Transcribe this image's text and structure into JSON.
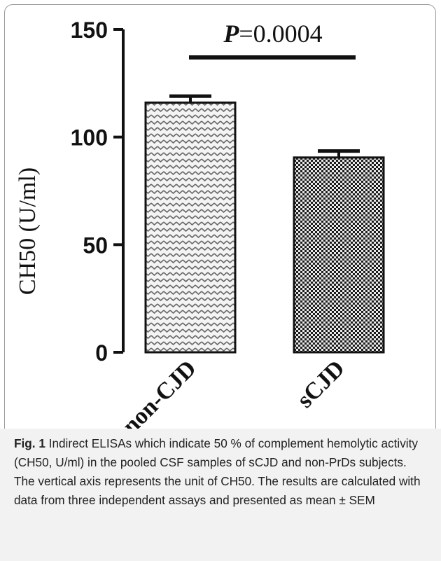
{
  "chart_data": {
    "type": "bar",
    "categories": [
      "non-CJD",
      "sCJD"
    ],
    "values": [
      116,
      90.5
    ],
    "errors": [
      3,
      3
    ],
    "ylabel": "CH50 (U/ml)",
    "ylim": [
      0,
      150
    ],
    "yticks": [
      0,
      50,
      100,
      150
    ],
    "annotation": {
      "p_label": "P",
      "p_value": "=0.0004"
    }
  },
  "caption": {
    "label": "Fig. 1",
    "text": " Indirect ELISAs which indicate 50 % of complement hemolytic activity (CH50, U/ml) in the pooled CSF samples of sCJD and non-PrDs subjects. The vertical axis represents the unit of CH50. The results are calculated with data from three independent assays and presented as mean ± SEM"
  }
}
